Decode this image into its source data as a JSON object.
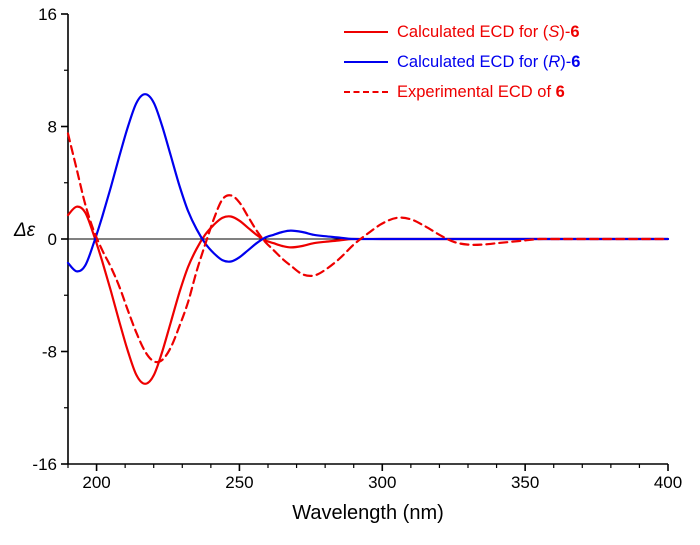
{
  "chart_data": {
    "type": "line",
    "title": "",
    "xlabel": "Wavelength (nm)",
    "ylabel": "Δε",
    "xlim": [
      190,
      400
    ],
    "ylim": [
      -16,
      16
    ],
    "xticks_major": [
      200,
      250,
      300,
      350,
      400
    ],
    "xticks_minor_step": 10,
    "yticks_major": [
      -16,
      -8,
      0,
      8,
      16
    ],
    "yticks_minor_step": 4,
    "grid": false,
    "zero_line": true,
    "legend_position": "top-right",
    "series": [
      {
        "name": "Calculated ECD for (S)-6",
        "color": "#ee0000",
        "style": "solid",
        "points": [
          [
            190,
            1.7
          ],
          [
            193,
            2.3
          ],
          [
            196,
            1.9
          ],
          [
            199,
            0.3
          ],
          [
            202,
            -1.6
          ],
          [
            205,
            -3.7
          ],
          [
            208,
            -5.9
          ],
          [
            211,
            -8.0
          ],
          [
            214,
            -9.7
          ],
          [
            217,
            -10.3
          ],
          [
            220,
            -9.7
          ],
          [
            223,
            -8.0
          ],
          [
            226,
            -5.9
          ],
          [
            229,
            -3.8
          ],
          [
            232,
            -2.0
          ],
          [
            235,
            -0.7
          ],
          [
            238,
            0.3
          ],
          [
            241,
            1.0
          ],
          [
            244,
            1.5
          ],
          [
            247,
            1.6
          ],
          [
            250,
            1.3
          ],
          [
            253,
            0.8
          ],
          [
            256,
            0.3
          ],
          [
            259,
            -0.1
          ],
          [
            262,
            -0.3
          ],
          [
            265,
            -0.5
          ],
          [
            268,
            -0.6
          ],
          [
            272,
            -0.5
          ],
          [
            276,
            -0.3
          ],
          [
            280,
            -0.2
          ],
          [
            285,
            -0.1
          ],
          [
            290,
            0
          ],
          [
            300,
            0
          ],
          [
            310,
            0
          ],
          [
            320,
            0
          ],
          [
            340,
            0
          ],
          [
            360,
            0
          ],
          [
            380,
            0
          ],
          [
            400,
            0
          ]
        ]
      },
      {
        "name": "Calculated ECD for (R)-6",
        "color": "#0000ee",
        "style": "solid",
        "points": [
          [
            190,
            -1.7
          ],
          [
            193,
            -2.3
          ],
          [
            196,
            -1.9
          ],
          [
            199,
            -0.3
          ],
          [
            202,
            1.6
          ],
          [
            205,
            3.7
          ],
          [
            208,
            5.9
          ],
          [
            211,
            8.0
          ],
          [
            214,
            9.7
          ],
          [
            217,
            10.3
          ],
          [
            220,
            9.7
          ],
          [
            223,
            8.0
          ],
          [
            226,
            5.9
          ],
          [
            229,
            3.8
          ],
          [
            232,
            2.0
          ],
          [
            235,
            0.7
          ],
          [
            238,
            -0.3
          ],
          [
            241,
            -1.0
          ],
          [
            244,
            -1.5
          ],
          [
            247,
            -1.6
          ],
          [
            250,
            -1.3
          ],
          [
            253,
            -0.8
          ],
          [
            256,
            -0.3
          ],
          [
            259,
            0.1
          ],
          [
            262,
            0.3
          ],
          [
            265,
            0.5
          ],
          [
            268,
            0.6
          ],
          [
            272,
            0.5
          ],
          [
            276,
            0.3
          ],
          [
            280,
            0.2
          ],
          [
            285,
            0.1
          ],
          [
            290,
            0
          ],
          [
            300,
            0
          ],
          [
            310,
            0
          ],
          [
            320,
            0
          ],
          [
            340,
            0
          ],
          [
            360,
            0
          ],
          [
            380,
            0
          ],
          [
            400,
            0
          ]
        ]
      },
      {
        "name": "Experimental ECD of 6",
        "color": "#ee0000",
        "style": "dashed",
        "points": [
          [
            190,
            7.5
          ],
          [
            193,
            5.0
          ],
          [
            196,
            2.5
          ],
          [
            199,
            0.6
          ],
          [
            202,
            -0.8
          ],
          [
            205,
            -2.0
          ],
          [
            208,
            -3.4
          ],
          [
            211,
            -5.1
          ],
          [
            214,
            -6.7
          ],
          [
            217,
            -8.0
          ],
          [
            220,
            -8.7
          ],
          [
            223,
            -8.6
          ],
          [
            226,
            -7.7
          ],
          [
            229,
            -6.2
          ],
          [
            232,
            -4.5
          ],
          [
            235,
            -2.3
          ],
          [
            238,
            -0.4
          ],
          [
            241,
            1.4
          ],
          [
            244,
            2.8
          ],
          [
            247,
            3.1
          ],
          [
            250,
            2.6
          ],
          [
            253,
            1.6
          ],
          [
            256,
            0.6
          ],
          [
            259,
            -0.2
          ],
          [
            262,
            -0.8
          ],
          [
            265,
            -1.4
          ],
          [
            268,
            -1.9
          ],
          [
            272,
            -2.5
          ],
          [
            276,
            -2.6
          ],
          [
            280,
            -2.2
          ],
          [
            285,
            -1.4
          ],
          [
            290,
            -0.4
          ],
          [
            295,
            0.4
          ],
          [
            300,
            1.1
          ],
          [
            305,
            1.5
          ],
          [
            310,
            1.4
          ],
          [
            315,
            0.9
          ],
          [
            320,
            0.3
          ],
          [
            325,
            -0.2
          ],
          [
            330,
            -0.4
          ],
          [
            335,
            -0.4
          ],
          [
            340,
            -0.3
          ],
          [
            345,
            -0.2
          ],
          [
            350,
            -0.1
          ],
          [
            355,
            0
          ],
          [
            360,
            0
          ],
          [
            370,
            0
          ],
          [
            380,
            0
          ],
          [
            390,
            0
          ],
          [
            400,
            0
          ]
        ]
      }
    ]
  },
  "legend": {
    "entries": [
      {
        "color": "#ee0000",
        "style": "solid",
        "prefix": "Calculated ECD for (",
        "stereo": "S",
        "mid": ")-",
        "compound": "6"
      },
      {
        "color": "#0000ee",
        "style": "solid",
        "prefix": "Calculated ECD for (",
        "stereo": "R",
        "mid": ")-",
        "compound": "6"
      },
      {
        "color": "#ee0000",
        "style": "dashed",
        "prefix": "Experimental ECD of ",
        "stereo": "",
        "mid": "",
        "compound": "6"
      }
    ]
  }
}
